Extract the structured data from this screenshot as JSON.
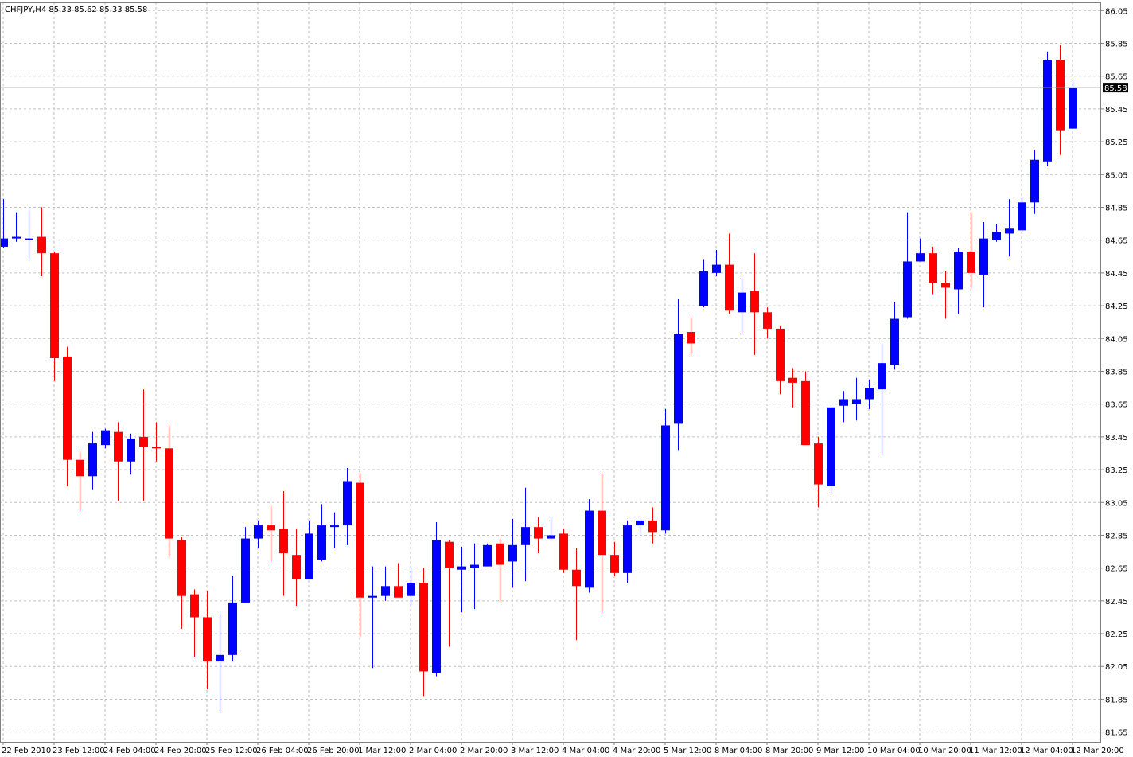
{
  "chart_data": {
    "type": "candlestick",
    "title": "CHFJPY,H4  85.33 85.62 85.33 85.58",
    "last_price": 85.58,
    "up_color": "#0000ff",
    "down_color": "#ff0000",
    "grid": true,
    "ylim": [
      81.59,
      86.1
    ],
    "yticks": [
      86.05,
      85.85,
      85.65,
      85.45,
      85.25,
      85.05,
      84.85,
      84.65,
      84.45,
      84.25,
      84.05,
      83.85,
      83.65,
      83.45,
      83.25,
      83.05,
      82.85,
      82.65,
      82.45,
      82.25,
      82.05,
      81.85,
      81.65
    ],
    "categories": [
      "22 Feb 2010",
      null,
      null,
      null,
      "23 Feb 12:00",
      null,
      null,
      null,
      "24 Feb 04:00",
      null,
      null,
      null,
      "24 Feb 20:00",
      null,
      null,
      null,
      "25 Feb 12:00",
      null,
      null,
      null,
      "26 Feb 04:00",
      null,
      null,
      null,
      "26 Feb 20:00",
      null,
      null,
      null,
      "1 Mar 12:00",
      null,
      null,
      null,
      "2 Mar 04:00",
      null,
      null,
      null,
      "2 Mar 20:00",
      null,
      null,
      null,
      "3 Mar 12:00",
      null,
      null,
      null,
      "4 Mar 04:00",
      null,
      null,
      null,
      "4 Mar 20:00",
      null,
      null,
      null,
      "5 Mar 12:00",
      null,
      null,
      null,
      "8 Mar 04:00",
      null,
      null,
      null,
      "8 Mar 20:00",
      null,
      null,
      null,
      "9 Mar 12:00",
      null,
      null,
      null,
      "10 Mar 04:00",
      null,
      null,
      null,
      "10 Mar 20:00",
      null,
      null,
      null,
      "11 Mar 12:00",
      null,
      null,
      null,
      "12 Mar 04:00",
      null,
      null,
      null,
      "12 Mar 20:00"
    ],
    "open": [
      84.61,
      84.66,
      84.66,
      84.67,
      84.57,
      83.94,
      83.31,
      83.21,
      83.4,
      83.48,
      83.3,
      83.45,
      83.39,
      83.38,
      82.82,
      82.49,
      82.35,
      82.08,
      82.12,
      82.44,
      82.83,
      82.91,
      82.89,
      82.73,
      82.58,
      82.7,
      82.9,
      82.91,
      83.17,
      82.47,
      82.48,
      82.54,
      82.48,
      82.56,
      82.01,
      82.81,
      82.64,
      82.65,
      82.66,
      82.8,
      82.69,
      82.79,
      82.9,
      82.83,
      82.86,
      82.64,
      82.53,
      83.0,
      82.73,
      82.62,
      82.91,
      82.94,
      82.88,
      83.53,
      84.09,
      84.25,
      84.45,
      84.5,
      84.21,
      84.34,
      84.21,
      84.11,
      83.81,
      83.79,
      83.41,
      83.15,
      83.64,
      83.65,
      83.68,
      83.74,
      83.89,
      84.18,
      84.52,
      84.57,
      84.39,
      84.35,
      84.58,
      84.44,
      84.65,
      84.69,
      84.71,
      84.88,
      85.13,
      85.75,
      85.33
    ],
    "high": [
      84.9,
      84.82,
      84.84,
      84.85,
      84.58,
      84.0,
      83.36,
      83.48,
      83.5,
      83.54,
      83.47,
      83.74,
      83.54,
      83.52,
      82.84,
      82.52,
      82.51,
      82.38,
      82.6,
      82.9,
      82.94,
      83.03,
      83.12,
      82.89,
      82.94,
      83.04,
      82.99,
      83.26,
      83.23,
      82.66,
      82.66,
      82.68,
      82.65,
      82.65,
      82.93,
      82.82,
      82.78,
      82.8,
      82.8,
      82.83,
      82.95,
      83.14,
      82.96,
      82.96,
      82.89,
      82.77,
      83.07,
      83.23,
      82.81,
      82.94,
      82.95,
      83.02,
      83.62,
      84.29,
      84.18,
      84.53,
      84.59,
      84.69,
      84.42,
      84.57,
      84.24,
      84.13,
      83.87,
      83.85,
      83.45,
      83.63,
      83.73,
      83.81,
      83.8,
      84.02,
      84.27,
      84.82,
      84.66,
      84.61,
      84.46,
      84.6,
      84.82,
      84.76,
      84.75,
      84.9,
      84.91,
      85.2,
      85.8,
      85.84,
      85.62
    ],
    "low": [
      84.6,
      84.64,
      84.53,
      84.43,
      83.79,
      83.15,
      83.0,
      83.13,
      83.38,
      83.06,
      83.22,
      83.06,
      83.3,
      82.72,
      82.28,
      82.11,
      81.91,
      81.77,
      82.08,
      82.44,
      82.77,
      82.69,
      82.48,
      82.42,
      82.58,
      82.69,
      82.77,
      82.79,
      82.23,
      82.04,
      82.45,
      82.47,
      82.43,
      81.87,
      81.99,
      82.17,
      82.38,
      82.4,
      82.66,
      82.45,
      82.53,
      82.57,
      82.74,
      82.82,
      82.62,
      82.21,
      82.5,
      82.38,
      82.6,
      82.56,
      82.86,
      82.8,
      82.86,
      83.37,
      83.95,
      84.24,
      84.43,
      84.2,
      84.08,
      83.95,
      84.05,
      83.71,
      83.63,
      83.4,
      83.02,
      83.11,
      83.54,
      83.55,
      83.62,
      83.34,
      83.86,
      84.17,
      84.52,
      84.32,
      84.17,
      84.2,
      84.36,
      84.24,
      84.64,
      84.55,
      84.7,
      84.81,
      85.1,
      85.17,
      85.33
    ],
    "close": [
      84.66,
      84.67,
      84.66,
      84.57,
      83.93,
      83.31,
      83.21,
      83.41,
      83.49,
      83.3,
      83.44,
      83.39,
      83.38,
      82.83,
      82.48,
      82.35,
      82.08,
      82.12,
      82.44,
      82.83,
      82.91,
      82.88,
      82.74,
      82.58,
      82.86,
      82.91,
      82.91,
      83.18,
      82.47,
      82.48,
      82.54,
      82.47,
      82.56,
      82.02,
      82.82,
      82.65,
      82.66,
      82.67,
      82.79,
      82.67,
      82.79,
      82.9,
      82.83,
      82.85,
      82.64,
      82.54,
      83.0,
      82.73,
      82.62,
      82.91,
      82.94,
      82.87,
      83.52,
      84.08,
      84.02,
      84.46,
      84.5,
      84.22,
      84.33,
      84.21,
      84.11,
      83.79,
      83.78,
      83.4,
      83.16,
      83.63,
      83.68,
      83.68,
      83.75,
      83.9,
      84.17,
      84.52,
      84.57,
      84.39,
      84.36,
      84.58,
      84.45,
      84.66,
      84.7,
      84.72,
      84.88,
      85.14,
      85.75,
      85.32,
      85.58
    ]
  }
}
